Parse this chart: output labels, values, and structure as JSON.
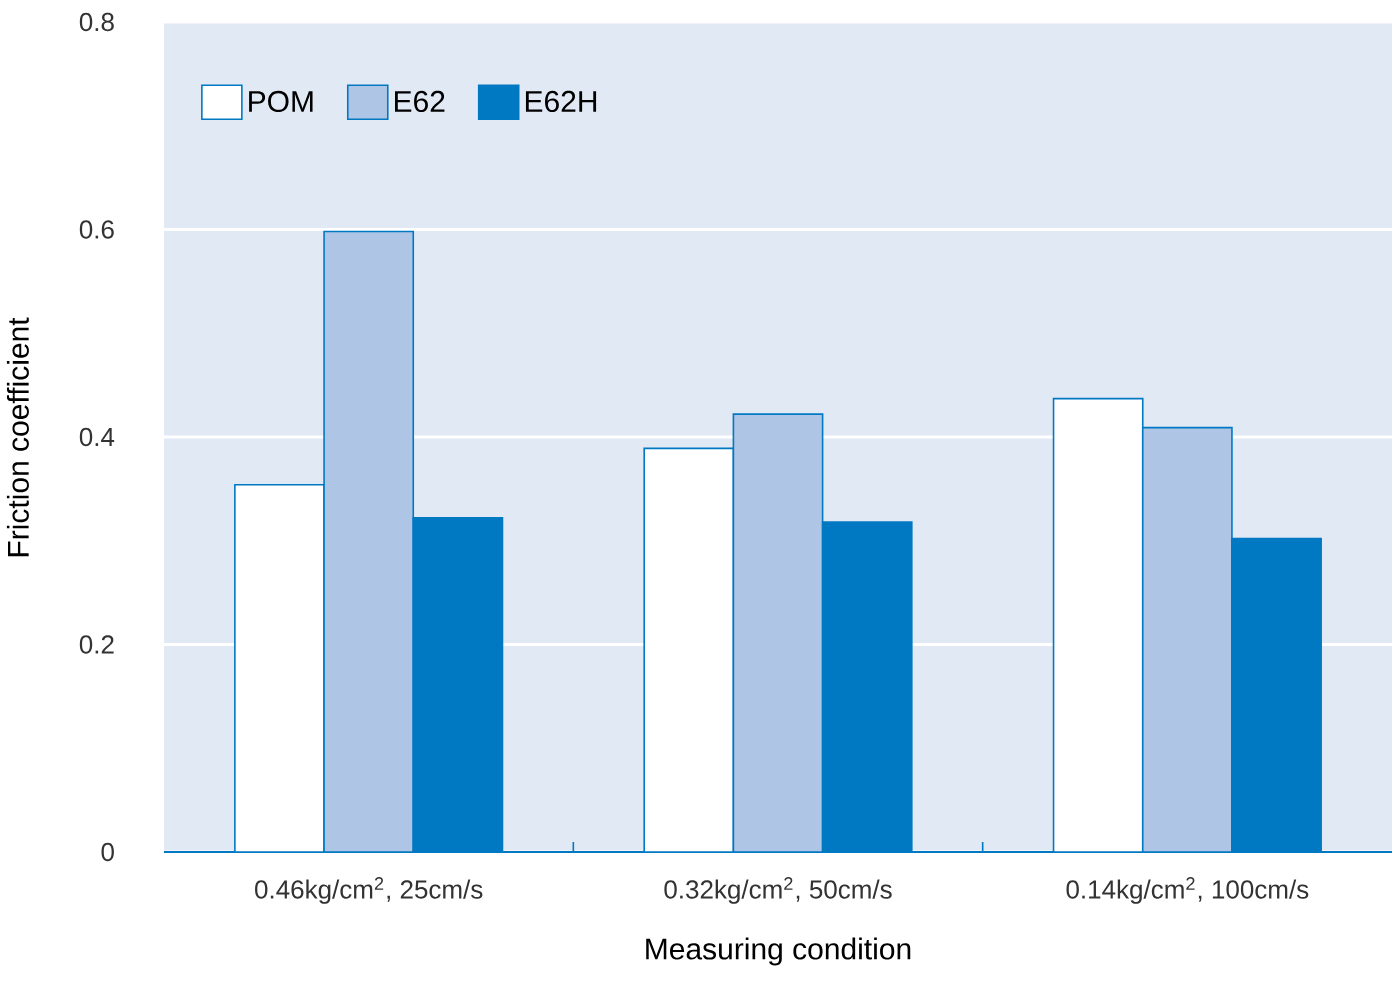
{
  "chart_data": {
    "type": "bar",
    "xlabel": "Measuring condition",
    "ylabel": "Friction coefficient",
    "categories": [
      "0.46kg/cm$^{2}$, 25cm/s",
      "0.32kg/cm$^{2}$, 50cm/s",
      "0.14kg/cm$^{2}$, 100cm/s"
    ],
    "series": [
      {
        "name": "POM",
        "color": "#ffffff",
        "values": [
          0.354,
          0.389,
          0.437
        ]
      },
      {
        "name": "E62",
        "color": "#afc5e5",
        "values": [
          0.598,
          0.422,
          0.409
        ]
      },
      {
        "name": "E62H",
        "color": "#0079c2",
        "values": [
          0.322,
          0.318,
          0.302
        ]
      }
    ],
    "ylim": [
      0,
      0.8
    ],
    "yticks": [
      0,
      0.2,
      0.4,
      0.6,
      0.8
    ],
    "grid": "y",
    "legend": "top left"
  }
}
